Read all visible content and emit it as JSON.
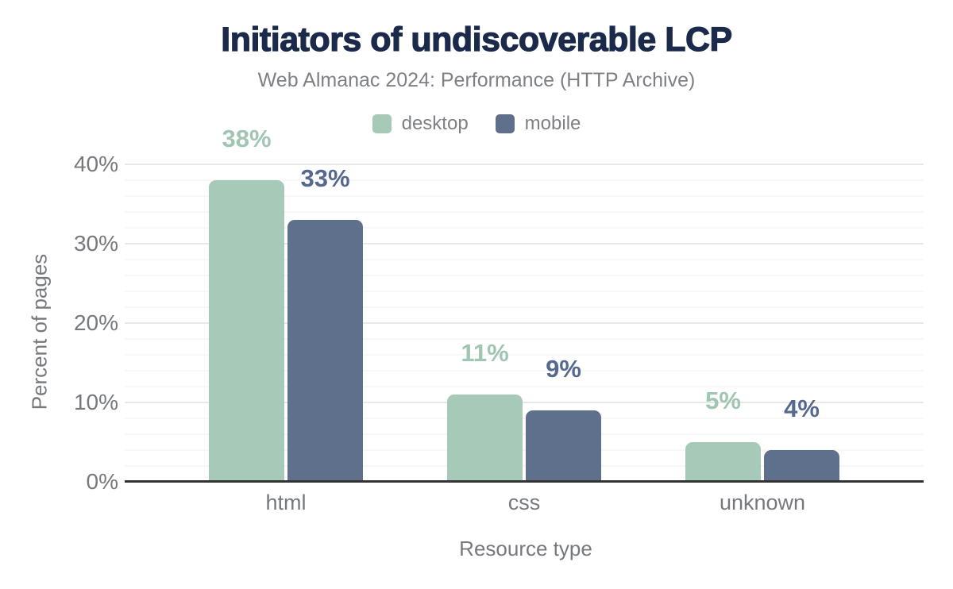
{
  "chart_data": {
    "type": "bar",
    "title": "Initiators of undiscoverable LCP",
    "subtitle": "Web Almanac 2024: Performance (HTTP Archive)",
    "categories": [
      "html",
      "css",
      "unknown"
    ],
    "series": [
      {
        "name": "desktop",
        "color": "#a6c9b8",
        "label_color": "#a0c6b2",
        "values": [
          38,
          11,
          5
        ],
        "data_labels": [
          "38%",
          "11%",
          "5%"
        ]
      },
      {
        "name": "mobile",
        "color": "#5f708c",
        "label_color": "#55688e",
        "values": [
          33,
          9,
          4
        ],
        "data_labels": [
          "33%",
          "9%",
          "4%"
        ]
      }
    ],
    "xlabel": "Resource type",
    "ylabel": "Percent of pages",
    "ylim": [
      0,
      40
    ],
    "yticks": [
      0,
      10,
      20,
      30,
      40
    ],
    "ytick_labels": [
      "0%",
      "10%",
      "20%",
      "30%",
      "40%"
    ],
    "grid": {
      "minor_step": 2,
      "major_step": 10
    },
    "legend_position": "top"
  }
}
